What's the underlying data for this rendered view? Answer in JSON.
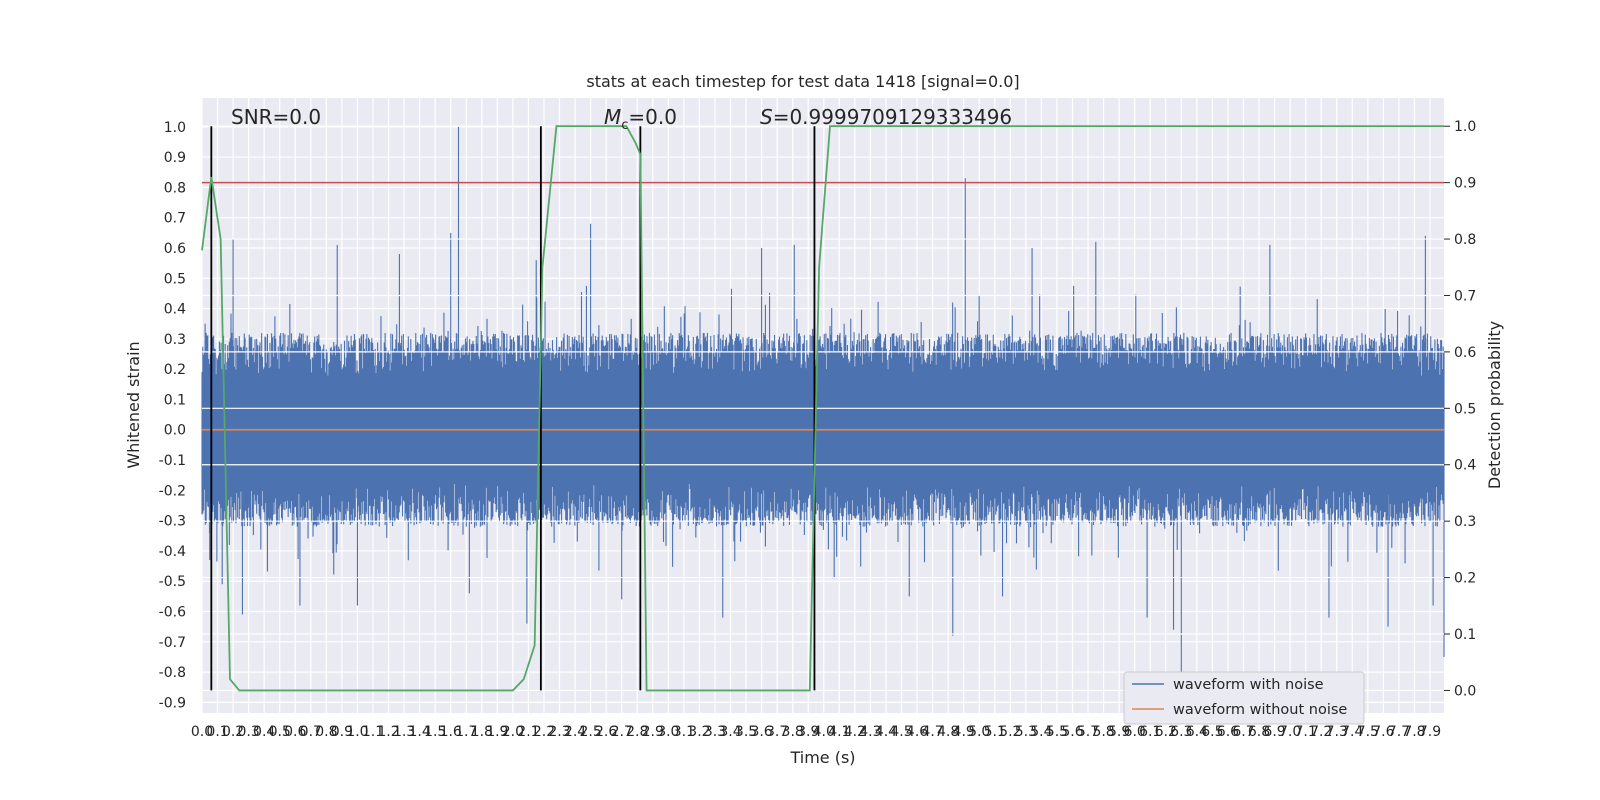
{
  "chart_data": {
    "type": "line",
    "title": "stats at each timestep for test data 1418 [signal=0.0]",
    "xlabel": "Time (s)",
    "ylabel_left": "Whitened strain",
    "ylabel_right": "Detection probability",
    "xlim": [
      0.0,
      7.99
    ],
    "ylim_left": [
      -0.935,
      1.095
    ],
    "ylim_right": [
      -0.04,
      1.05
    ],
    "x_ticks": [
      "0.0",
      "0.1",
      "0.2",
      "0.3",
      "0.4",
      "0.5",
      "0.6",
      "0.7",
      "0.8",
      "0.9",
      "1.0",
      "1.1",
      "1.2",
      "1.3",
      "1.4",
      "1.5",
      "1.6",
      "1.7",
      "1.8",
      "1.9",
      "2.0",
      "2.1",
      "2.2",
      "2.3",
      "2.4",
      "2.5",
      "2.6",
      "2.7",
      "2.8",
      "2.9",
      "3.0",
      "3.1",
      "3.2",
      "3.3",
      "3.4",
      "3.5",
      "3.6",
      "3.7",
      "3.8",
      "3.9",
      "4.0",
      "4.1",
      "4.2",
      "4.3",
      "4.4",
      "4.5",
      "4.6",
      "4.7",
      "4.8",
      "4.9",
      "5.0",
      "5.1",
      "5.2",
      "5.3",
      "5.4",
      "5.5",
      "5.6",
      "5.7",
      "5.8",
      "5.9",
      "6.0",
      "6.1",
      "6.2",
      "6.3",
      "6.4",
      "6.5",
      "6.6",
      "6.7",
      "6.8",
      "6.9",
      "7.0",
      "7.1",
      "7.2",
      "7.3",
      "7.4",
      "7.5",
      "7.6",
      "7.7",
      "7.8",
      "7.9"
    ],
    "y_ticks_left": [
      "-0.9",
      "-0.8",
      "-0.7",
      "-0.6",
      "-0.5",
      "-0.4",
      "-0.3",
      "-0.2",
      "-0.1",
      "0.0",
      "0.1",
      "0.2",
      "0.3",
      "0.4",
      "0.5",
      "0.6",
      "0.7",
      "0.8",
      "0.9",
      "1.0"
    ],
    "y_ticks_right": [
      "0.0",
      "0.1",
      "0.2",
      "0.3",
      "0.4",
      "0.5",
      "0.6",
      "0.7",
      "0.8",
      "0.9",
      "1.0"
    ],
    "annotations": {
      "snr": "SNR=0.0",
      "mc_symbol": "M",
      "mc_sub": "c",
      "mc_value": "=0.0",
      "s_symbol": "S",
      "s_value": "=0.9999709129333496"
    },
    "legend": {
      "placement": "lower-right",
      "entries": [
        {
          "label": "waveform with noise",
          "color": "#4c72b0"
        },
        {
          "label": "waveform without noise",
          "color": "#dd8452"
        }
      ]
    },
    "series": [
      {
        "name": "waveform with noise",
        "axis": "left",
        "color": "#4c72b0",
        "style": "dense noise",
        "typical_band": [
          -0.32,
          0.32
        ],
        "peaks": [
          {
            "x": 0.02,
            "y": 0.35
          },
          {
            "x": 0.05,
            "y": -0.43
          },
          {
            "x": 0.13,
            "y": -0.51
          },
          {
            "x": 0.2,
            "y": 0.63
          },
          {
            "x": 0.26,
            "y": -0.61
          },
          {
            "x": 0.63,
            "y": -0.58
          },
          {
            "x": 0.87,
            "y": 0.61
          },
          {
            "x": 1.0,
            "y": -0.58
          },
          {
            "x": 1.27,
            "y": 0.58
          },
          {
            "x": 1.6,
            "y": 0.65
          },
          {
            "x": 1.65,
            "y": 1.0
          },
          {
            "x": 1.72,
            "y": -0.54
          },
          {
            "x": 2.09,
            "y": -0.64
          },
          {
            "x": 2.15,
            "y": 0.56
          },
          {
            "x": 2.5,
            "y": 0.68
          },
          {
            "x": 2.7,
            "y": -0.56
          },
          {
            "x": 3.35,
            "y": -0.62
          },
          {
            "x": 3.6,
            "y": 0.6
          },
          {
            "x": 3.81,
            "y": 0.61
          },
          {
            "x": 4.55,
            "y": -0.55
          },
          {
            "x": 4.83,
            "y": -0.68
          },
          {
            "x": 4.91,
            "y": 0.83
          },
          {
            "x": 5.15,
            "y": -0.55
          },
          {
            "x": 5.34,
            "y": 0.6
          },
          {
            "x": 5.75,
            "y": 0.62
          },
          {
            "x": 6.08,
            "y": -0.62
          },
          {
            "x": 6.25,
            "y": -0.66
          },
          {
            "x": 6.3,
            "y": -0.83
          },
          {
            "x": 6.87,
            "y": 0.61
          },
          {
            "x": 7.25,
            "y": -0.62
          },
          {
            "x": 7.63,
            "y": -0.65
          },
          {
            "x": 7.87,
            "y": 0.64
          },
          {
            "x": 7.92,
            "y": -0.58
          },
          {
            "x": 7.99,
            "y": -0.75
          }
        ]
      },
      {
        "name": "waveform without noise",
        "axis": "left",
        "color": "#dd8452",
        "x": [
          0.0,
          7.99
        ],
        "y": [
          0.0,
          0.0
        ]
      },
      {
        "axis": "right",
        "color": "#55a868",
        "x": [
          0.0,
          0.06,
          0.12,
          0.18,
          0.24,
          1.56,
          1.68,
          1.92,
          2.0,
          2.07,
          2.14,
          2.19,
          2.28,
          2.73,
          2.79,
          2.82,
          2.86,
          2.92,
          3.91,
          3.97,
          4.04,
          7.99
        ],
        "y": [
          0.78,
          0.91,
          0.8,
          0.02,
          0.0,
          0.0,
          0.0,
          0.0,
          0.0,
          0.02,
          0.08,
          0.75,
          1.0,
          1.0,
          0.97,
          0.95,
          0.0,
          0.0,
          0.0,
          0.75,
          1.0,
          1.0
        ]
      },
      {
        "axis": "right",
        "color": "#c44e52",
        "x": [
          0.0,
          7.99
        ],
        "y": [
          0.9,
          0.9
        ]
      }
    ],
    "vertical_lines_x": [
      0.06,
      2.18,
      2.82,
      3.94
    ]
  }
}
